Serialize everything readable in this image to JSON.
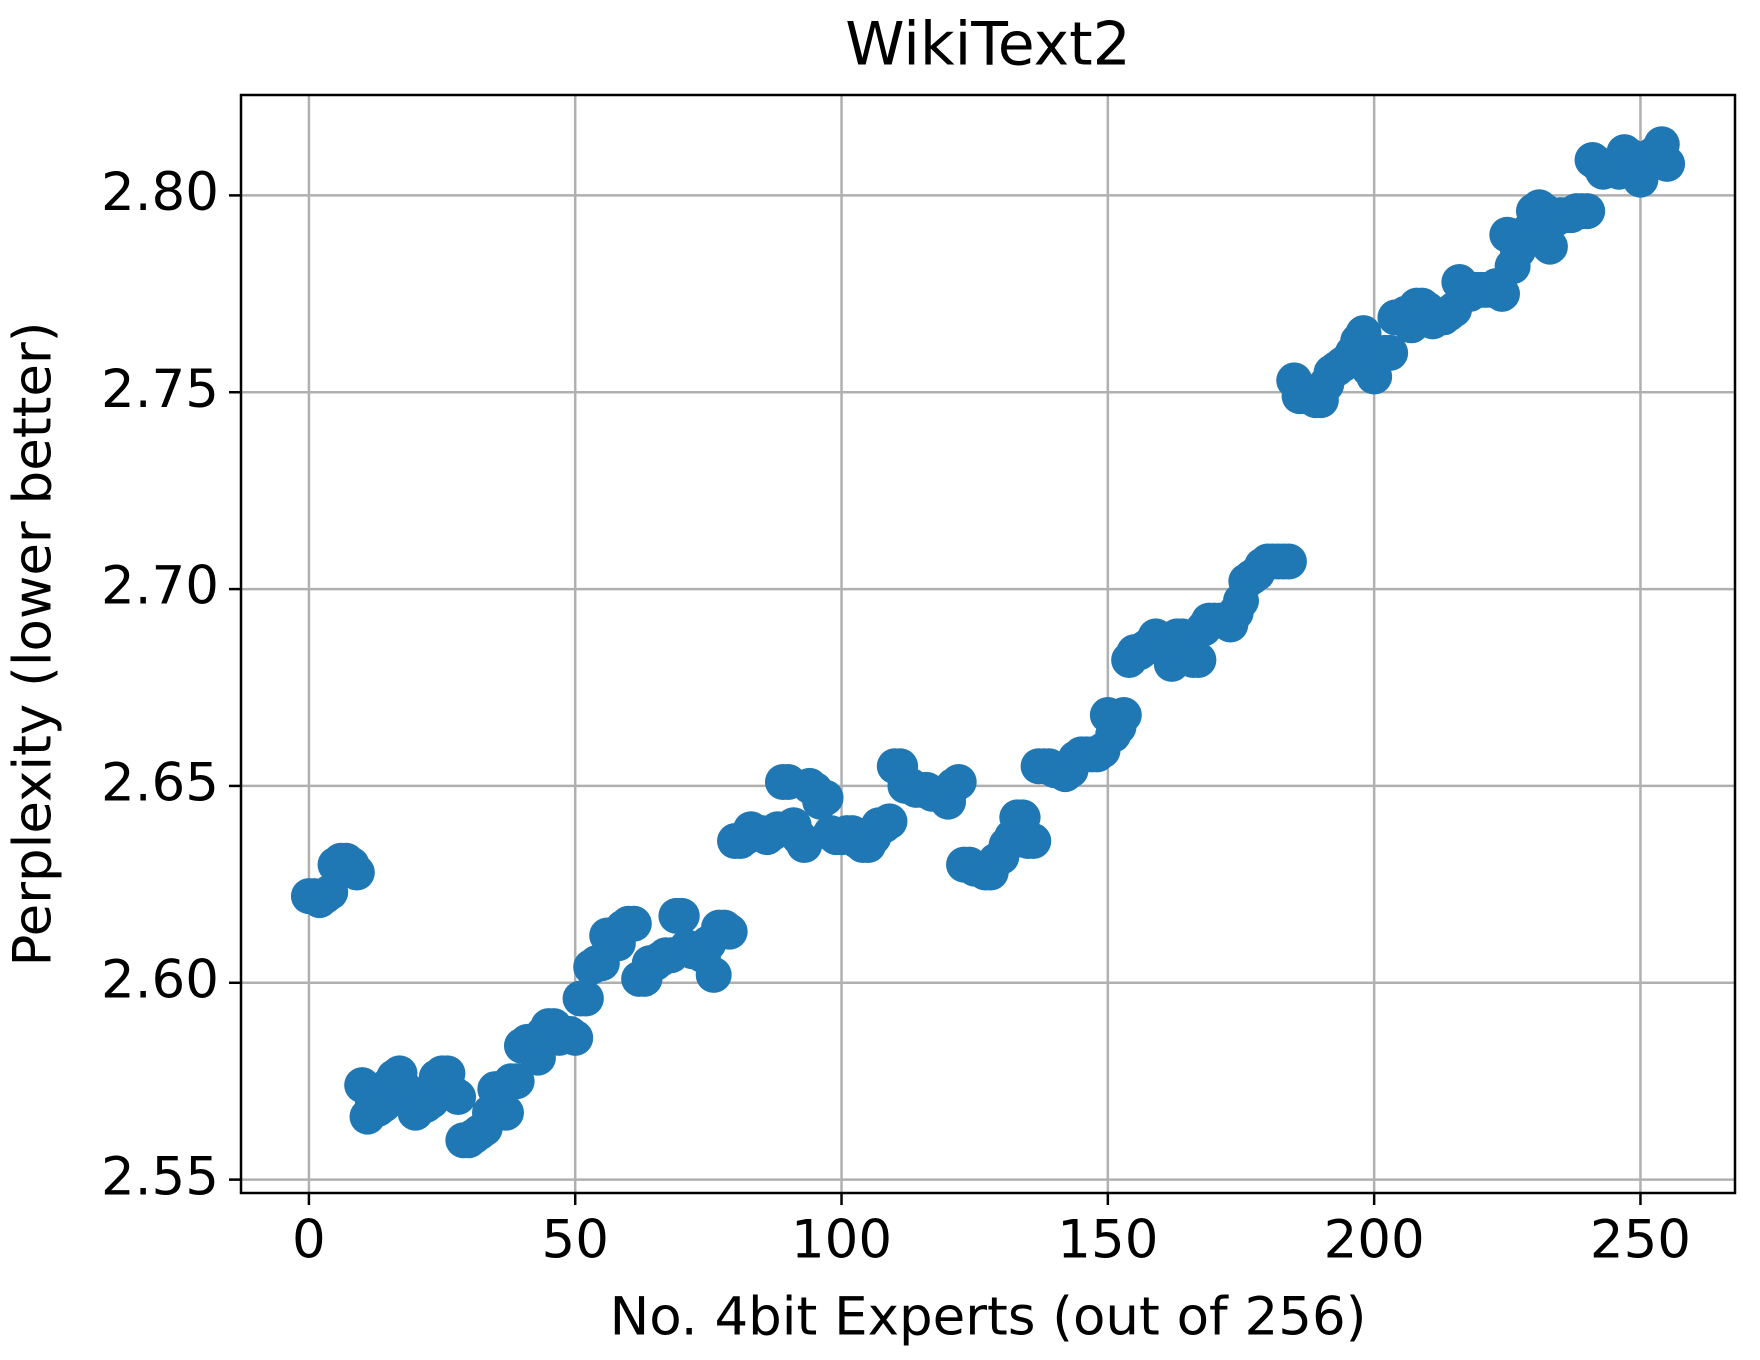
{
  "chart_data": {
    "type": "scatter",
    "title": "WikiText2",
    "xlabel": "No. 4bit Experts (out of 256)",
    "ylabel": "Perplexity (lower better)",
    "xlim": [
      -12.75,
      267.75
    ],
    "ylim": [
      2.5466,
      2.8255
    ],
    "xticks": [
      0,
      50,
      100,
      150,
      200,
      250
    ],
    "yticks": [
      2.55,
      {
        "value": 2.6,
        "label": "2.60"
      },
      2.65,
      {
        "value": 2.7,
        "label": "2.70"
      },
      2.75,
      {
        "value": 2.8,
        "label": "2.80"
      }
    ],
    "grid": true,
    "series": [
      {
        "color": "#1f77b4",
        "x": [
          0,
          1,
          2,
          3,
          4,
          5,
          6,
          7,
          8,
          9,
          10,
          11,
          12,
          13,
          14,
          15,
          16,
          17,
          18,
          19,
          20,
          21,
          22,
          23,
          24,
          25,
          26,
          27,
          28,
          29,
          30,
          31,
          32,
          33,
          34,
          35,
          36,
          37,
          38,
          39,
          40,
          41,
          42,
          43,
          44,
          45,
          46,
          47,
          48,
          49,
          50,
          51,
          52,
          53,
          54,
          55,
          56,
          57,
          58,
          59,
          60,
          61,
          62,
          63,
          64,
          65,
          66,
          67,
          68,
          69,
          70,
          71,
          72,
          73,
          74,
          75,
          76,
          77,
          78,
          79,
          80,
          81,
          82,
          83,
          84,
          85,
          86,
          87,
          88,
          89,
          90,
          91,
          92,
          93,
          94,
          95,
          96,
          97,
          98,
          99,
          100,
          101,
          102,
          103,
          104,
          105,
          106,
          107,
          108,
          109,
          110,
          111,
          112,
          113,
          114,
          115,
          116,
          117,
          118,
          119,
          120,
          121,
          122,
          123,
          124,
          125,
          126,
          127,
          128,
          129,
          130,
          131,
          132,
          133,
          134,
          135,
          136,
          137,
          138,
          139,
          140,
          141,
          142,
          143,
          144,
          145,
          146,
          147,
          148,
          149,
          150,
          151,
          152,
          153,
          154,
          155,
          156,
          157,
          158,
          159,
          160,
          161,
          162,
          163,
          164,
          165,
          166,
          167,
          168,
          169,
          170,
          171,
          172,
          173,
          174,
          175,
          176,
          177,
          178,
          179,
          180,
          181,
          182,
          183,
          184,
          185,
          186,
          187,
          188,
          189,
          190,
          191,
          192,
          193,
          194,
          195,
          196,
          197,
          198,
          199,
          200,
          201,
          202,
          203,
          204,
          205,
          206,
          207,
          208,
          209,
          210,
          211,
          212,
          213,
          214,
          215,
          216,
          217,
          218,
          219,
          220,
          221,
          222,
          223,
          224,
          225,
          226,
          227,
          228,
          229,
          230,
          231,
          232,
          233,
          234,
          235,
          236,
          237,
          238,
          239,
          240,
          241,
          242,
          243,
          244,
          245,
          246,
          247,
          248,
          249,
          250,
          251,
          252,
          253,
          254,
          255
        ],
        "values": [
          2.622,
          2.622,
          2.621,
          2.622,
          2.623,
          2.63,
          2.631,
          2.631,
          2.63,
          2.628,
          2.574,
          2.566,
          2.57,
          2.568,
          2.569,
          2.574,
          2.576,
          2.577,
          2.573,
          2.572,
          2.567,
          2.571,
          2.569,
          2.57,
          2.576,
          2.577,
          2.577,
          2.572,
          2.571,
          2.56,
          2.56,
          2.561,
          2.562,
          2.563,
          2.567,
          2.573,
          2.573,
          2.567,
          2.575,
          2.575,
          2.584,
          2.585,
          2.584,
          2.581,
          2.587,
          2.589,
          2.589,
          2.586,
          2.587,
          2.587,
          2.586,
          2.596,
          2.596,
          2.604,
          2.605,
          2.605,
          2.612,
          2.612,
          2.61,
          2.614,
          2.615,
          2.615,
          2.601,
          2.601,
          2.605,
          2.605,
          2.606,
          2.607,
          2.607,
          2.617,
          2.617,
          2.609,
          2.608,
          2.608,
          2.607,
          2.61,
          2.602,
          2.614,
          2.614,
          2.613,
          2.636,
          2.636,
          2.637,
          2.639,
          2.638,
          2.638,
          2.637,
          2.638,
          2.639,
          2.651,
          2.651,
          2.64,
          2.637,
          2.635,
          2.65,
          2.649,
          2.646,
          2.647,
          2.638,
          2.637,
          2.637,
          2.638,
          2.638,
          2.636,
          2.635,
          2.635,
          2.637,
          2.64,
          2.64,
          2.641,
          2.655,
          2.655,
          2.65,
          2.65,
          2.649,
          2.649,
          2.649,
          2.648,
          2.648,
          2.648,
          2.646,
          2.65,
          2.651,
          2.63,
          2.63,
          2.629,
          2.629,
          2.628,
          2.628,
          2.631,
          2.632,
          2.635,
          2.637,
          2.642,
          2.642,
          2.636,
          2.636,
          2.655,
          2.655,
          2.655,
          2.654,
          2.654,
          2.653,
          2.654,
          2.657,
          2.658,
          2.658,
          2.658,
          2.658,
          2.659,
          2.668,
          2.663,
          2.665,
          2.668,
          2.682,
          2.684,
          2.684,
          2.685,
          2.686,
          2.688,
          2.687,
          2.685,
          2.681,
          2.688,
          2.688,
          2.684,
          2.682,
          2.682,
          2.69,
          2.692,
          2.692,
          2.692,
          2.692,
          2.691,
          2.694,
          2.697,
          2.702,
          2.703,
          2.704,
          2.706,
          2.707,
          2.707,
          2.707,
          2.707,
          2.707,
          2.753,
          2.749,
          2.749,
          2.749,
          2.748,
          2.748,
          2.752,
          2.755,
          2.756,
          2.757,
          2.758,
          2.76,
          2.763,
          2.765,
          2.756,
          2.754,
          2.759,
          2.76,
          2.76,
          2.769,
          2.769,
          2.77,
          2.767,
          2.772,
          2.772,
          2.771,
          2.768,
          2.769,
          2.769,
          2.77,
          2.771,
          2.778,
          2.775,
          2.775,
          2.776,
          2.776,
          2.776,
          2.776,
          2.777,
          2.775,
          2.79,
          2.782,
          2.786,
          2.789,
          2.791,
          2.796,
          2.797,
          2.796,
          2.787,
          2.794,
          2.795,
          2.795,
          2.795,
          2.796,
          2.796,
          2.796,
          2.809,
          2.808,
          2.806,
          2.807,
          2.807,
          2.806,
          2.811,
          2.81,
          2.806,
          2.804,
          2.808,
          2.81,
          2.811,
          2.813,
          2.808
        ]
      }
    ]
  }
}
